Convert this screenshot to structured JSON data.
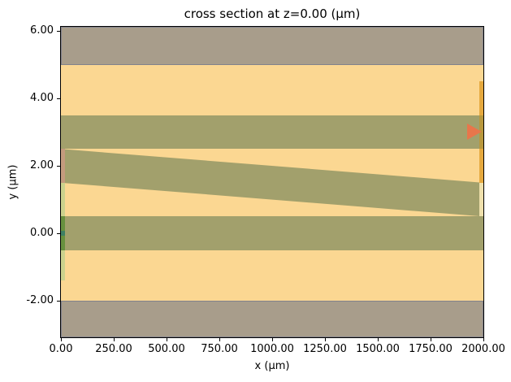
{
  "title": "cross section at z=0.00 (μm)",
  "axes": {
    "xlabel": "x (μm)",
    "ylabel": "y (μm)"
  },
  "chart_data": {
    "type": "area",
    "description": "simulation cross-section layer plot at z=0.00 μm with layered media, PML hatched boundary regions, a sloped 1-μm-thick waveguide layer, a source strip at x=0 and a monitor strip with direction arrow at x=2000",
    "title": "cross section at z=0.00 (μm)",
    "xlabel": "x (μm)",
    "ylabel": "y (μm)",
    "xlim": [
      0,
      2000
    ],
    "ylim": [
      -3.08,
      6.12
    ],
    "grid": false,
    "legend": null,
    "x_ticks": [
      {
        "value": 0,
        "label": "0.00"
      },
      {
        "value": 250,
        "label": "250.00"
      },
      {
        "value": 500,
        "label": "500.00"
      },
      {
        "value": 750,
        "label": "750.00"
      },
      {
        "value": 1000,
        "label": "1000.00"
      },
      {
        "value": 1250,
        "label": "1250.00"
      },
      {
        "value": 1500,
        "label": "1500.00"
      },
      {
        "value": 1750,
        "label": "1750.00"
      },
      {
        "value": 2000,
        "label": "2000.00"
      }
    ],
    "y_ticks": [
      {
        "value": 6,
        "label": "6.00"
      },
      {
        "value": 4,
        "label": "4.00"
      },
      {
        "value": 2,
        "label": "2.00"
      },
      {
        "value": 0,
        "label": "0.00"
      },
      {
        "value": -2,
        "label": "-2.00"
      }
    ],
    "colors": {
      "background_medium": "#FBD792",
      "layer_olive": "#A2A06C",
      "pml_fill": "#A89D8B",
      "pml_hatch_line": "#7F7F8C",
      "source_pink": "#C49B7E",
      "source_green": "#CBD28D",
      "source_green_dark": "#68913F",
      "marker_teal": "#3E8063",
      "monitor_amber": "#E6A93E",
      "monitor_amber_dark": "#B9983D",
      "monitor_cream": "#EFE0AC",
      "arrow": "#E8764B"
    },
    "background_band": {
      "y_top": 5.0,
      "y_bottom": -2.0,
      "color_key": "background_medium"
    },
    "olive_bands": [
      {
        "y_top": 3.5,
        "y_bottom": 2.5,
        "color_key": "layer_olive"
      },
      {
        "y_top": 0.5,
        "y_bottom": -0.5,
        "color_key": "layer_olive"
      }
    ],
    "taper": {
      "x0": 0,
      "x1": 2000,
      "top_y0": 2.5,
      "top_y1": 1.5,
      "bottom_y0": 1.5,
      "bottom_y1": 0.5,
      "color_key": "layer_olive"
    },
    "pml_bands": [
      {
        "y_top": 6.12,
        "y_bottom": 5.0
      },
      {
        "y_top": -2.0,
        "y_bottom": -3.08
      }
    ],
    "source_strip": {
      "x0": 0,
      "x1": 18,
      "segments": [
        {
          "y_top": 2.5,
          "y_bottom": 1.5,
          "color_key": "source_pink"
        },
        {
          "y_top": 1.5,
          "y_bottom": 0.5,
          "color_key": "source_green"
        },
        {
          "y_top": 0.5,
          "y_bottom": -0.5,
          "color_key": "source_green_dark"
        },
        {
          "y_top": -0.5,
          "y_bottom": -1.4,
          "color_key": "source_green"
        }
      ],
      "marker": {
        "x0": 0,
        "x1": 18,
        "y": 0.0,
        "half_height": 0.07,
        "color_key": "marker_teal"
      }
    },
    "monitor_strip": {
      "x0": 1981,
      "x1": 2000,
      "segments": [
        {
          "y_top": 4.5,
          "y_bottom": 3.5,
          "color_key": "monitor_amber"
        },
        {
          "y_top": 3.5,
          "y_bottom": 2.5,
          "color_key": "monitor_amber_dark"
        },
        {
          "y_top": 2.5,
          "y_bottom": 1.5,
          "color_key": "monitor_amber"
        },
        {
          "y_top": 1.5,
          "y_bottom": 0.5,
          "color_key": "monitor_cream"
        }
      ]
    },
    "arrow": {
      "x_base": 1923,
      "x_tip": 1996,
      "y": 3.0,
      "half_height": 0.255,
      "color_key": "arrow"
    }
  }
}
